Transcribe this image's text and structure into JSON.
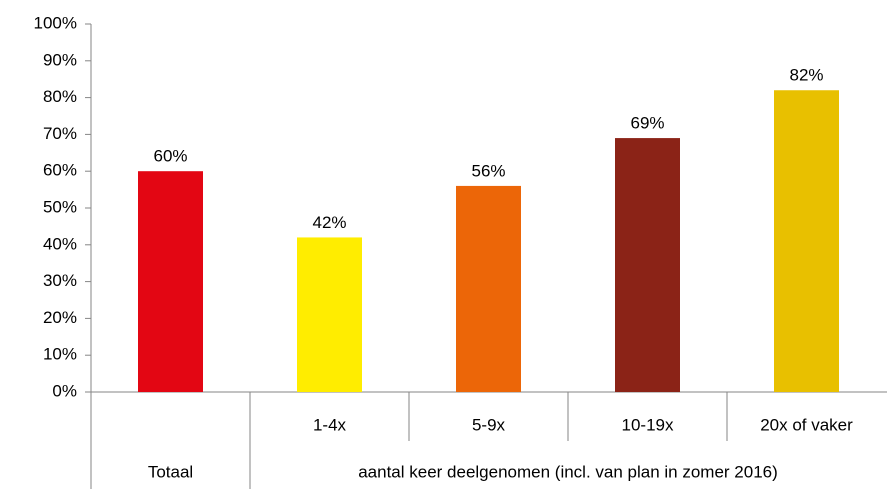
{
  "chart_data": {
    "type": "bar",
    "groups": [
      {
        "label": "Totaal",
        "categories": [
          null
        ]
      },
      {
        "label": "aantal keer deelgenomen (incl. van plan in zomer 2016)",
        "categories": [
          "1-4x",
          "5-9x",
          "10-19x",
          "20x of vaker"
        ]
      }
    ],
    "values": [
      60,
      42,
      56,
      69,
      82
    ],
    "value_labels": [
      "60%",
      "42%",
      "56%",
      "69%",
      "82%"
    ],
    "colors": [
      "#e30613",
      "#ffed00",
      "#ec6608",
      "#8b2317",
      "#e8c000"
    ],
    "ylim": [
      0,
      100
    ],
    "yticks": [
      {
        "value": 0,
        "label": "0%"
      },
      {
        "value": 10,
        "label": "10%"
      },
      {
        "value": 20,
        "label": "20%"
      },
      {
        "value": 30,
        "label": "30%"
      },
      {
        "value": 40,
        "label": "40%"
      },
      {
        "value": 50,
        "label": "50%"
      },
      {
        "value": 60,
        "label": "60%"
      },
      {
        "value": 70,
        "label": "70%"
      },
      {
        "value": 80,
        "label": "80%"
      },
      {
        "value": 90,
        "label": "90%"
      },
      {
        "value": 100,
        "label": "100%"
      }
    ],
    "grid": false
  }
}
